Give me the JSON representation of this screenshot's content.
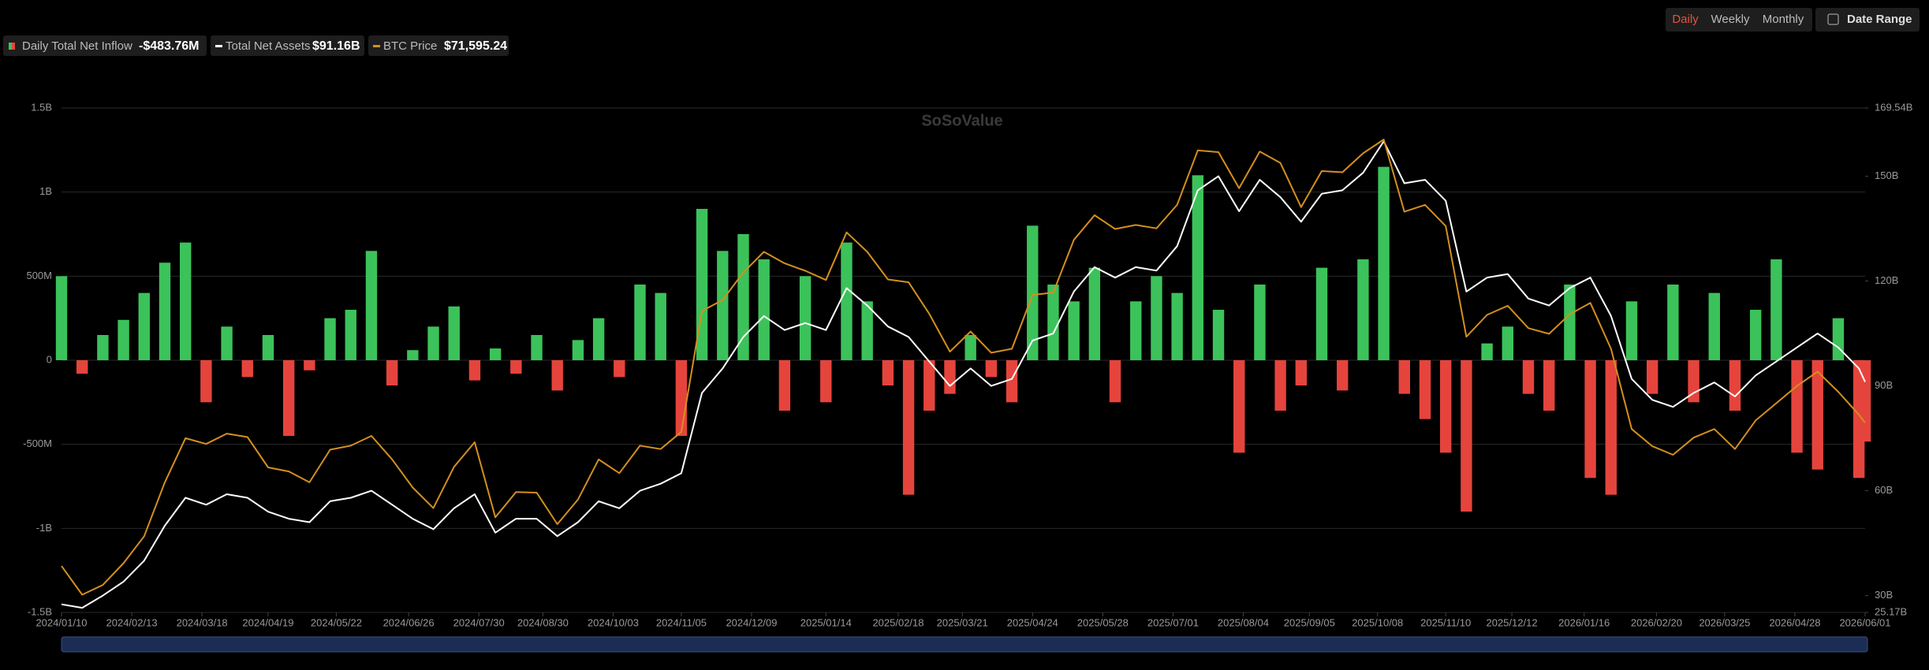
{
  "chart_data": {
    "type": "bar-line",
    "controls": [
      "Daily",
      "Weekly",
      "Monthly"
    ],
    "date_range": "Date Range",
    "watermark": "SoSoValue",
    "x": [
      "2024/01/10",
      "2024/01/20",
      "2024/01/30",
      "2024/02/09",
      "2024/02/19",
      "2024/02/29",
      "2024/03/10",
      "2024/03/20",
      "2024/03/30",
      "2024/04/09",
      "2024/04/19",
      "2024/04/29",
      "2024/05/09",
      "2024/05/19",
      "2024/05/29",
      "2024/06/08",
      "2024/06/18",
      "2024/06/28",
      "2024/07/08",
      "2024/07/18",
      "2024/07/28",
      "2024/08/07",
      "2024/08/17",
      "2024/08/27",
      "2024/09/06",
      "2024/09/16",
      "2024/09/26",
      "2024/10/06",
      "2024/10/16",
      "2024/10/26",
      "2024/11/05",
      "2024/11/15",
      "2024/11/25",
      "2024/12/05",
      "2024/12/15",
      "2024/12/25",
      "2025/01/04",
      "2025/01/14",
      "2025/01/24",
      "2025/02/03",
      "2025/02/13",
      "2025/02/23",
      "2025/03/05",
      "2025/03/15",
      "2025/03/25",
      "2025/04/04",
      "2025/04/14",
      "2025/04/24",
      "2025/05/04",
      "2025/05/14",
      "2025/05/24",
      "2025/06/03",
      "2025/06/13",
      "2025/06/23",
      "2025/07/03",
      "2025/07/13",
      "2025/07/23",
      "2025/08/02",
      "2025/08/12",
      "2025/08/22",
      "2025/09/01",
      "2025/09/11",
      "2025/09/21",
      "2025/10/01",
      "2025/10/11",
      "2025/10/21",
      "2025/10/31",
      "2025/11/10",
      "2025/11/20",
      "2025/11/30",
      "2025/12/10",
      "2025/12/20",
      "2025/12/30",
      "2026/01/09",
      "2026/01/19",
      "2026/01/29",
      "2026/02/08",
      "2026/02/18",
      "2026/02/28",
      "2026/03/10",
      "2026/03/20",
      "2026/03/30",
      "2026/04/09",
      "2026/04/19",
      "2026/04/29",
      "2026/05/09",
      "2026/05/19",
      "2026/05/29",
      "2026/06/01"
    ],
    "xlim": [
      "2024/01/10",
      "2026/06/01"
    ],
    "xticks": [
      "2024/01/10",
      "2024/02/13",
      "2024/03/18",
      "2024/04/19",
      "2024/05/22",
      "2024/06/26",
      "2024/07/30",
      "2024/08/30",
      "2024/10/03",
      "2024/11/05",
      "2024/12/09",
      "2025/01/14",
      "2025/02/18",
      "2025/03/21",
      "2025/04/24",
      "2025/05/28",
      "2025/07/01",
      "2025/08/04",
      "2025/09/05",
      "2025/10/08",
      "2025/11/10",
      "2025/12/12",
      "2026/01/16",
      "2026/02/20",
      "2026/03/25",
      "2026/04/28",
      "2026/06/01"
    ],
    "ylim": [
      -1500,
      1500
    ],
    "yticks": [
      {
        "value": 1500,
        "label": "1.5B"
      },
      {
        "value": 1000,
        "label": "1B"
      },
      {
        "value": 500,
        "label": "500M"
      },
      0,
      {
        "value": -500,
        "label": "-500M"
      },
      {
        "value": -1000,
        "label": "-1B"
      },
      {
        "value": -1500,
        "label": "-1.5B"
      }
    ],
    "y2lim": [
      25.17,
      169.54
    ],
    "y2ticks": [
      {
        "value": 169.54,
        "label": "169.54B"
      },
      {
        "value": 150,
        "label": "150B"
      },
      {
        "value": 120,
        "label": "120B"
      },
      {
        "value": 90,
        "label": "90B"
      },
      {
        "value": 60,
        "label": "60B"
      },
      {
        "value": 30,
        "label": "30B"
      },
      {
        "value": 25.17,
        "label": "25.17B"
      }
    ],
    "y3lim": [
      38500,
      126500
    ],
    "grid": true,
    "series": [
      {
        "name": "Daily Total Net Inflow",
        "latest": "-$483.76M",
        "type": "bar",
        "axis": "y",
        "color": "#3cc25a",
        "negative_color": "#e5443c",
        "values": [
          500,
          -80,
          150,
          240,
          400,
          580,
          700,
          -250,
          200,
          -100,
          150,
          -450,
          -60,
          250,
          300,
          650,
          -150,
          60,
          200,
          320,
          -120,
          70,
          -80,
          150,
          -180,
          120,
          250,
          -100,
          450,
          400,
          -450,
          900,
          650,
          750,
          600,
          -300,
          500,
          -250,
          700,
          350,
          -150,
          -800,
          -300,
          -200,
          150,
          -100,
          -250,
          800,
          450,
          350,
          550,
          -250,
          350,
          500,
          400,
          1100,
          300,
          -550,
          450,
          -300,
          -150,
          550,
          -180,
          600,
          1150,
          -200,
          -350,
          -550,
          -900,
          100,
          200,
          -200,
          -300,
          450,
          -700,
          -800,
          350,
          -200,
          450,
          -250,
          400,
          -300,
          300,
          600,
          -550,
          -650,
          250,
          -700,
          -483.76
        ]
      },
      {
        "name": "Total Net Assets",
        "latest": "$91.16B",
        "type": "line",
        "axis": "y2",
        "color": "#ffffff",
        "values": [
          27.5,
          26.5,
          30,
          34,
          40,
          50,
          58,
          56,
          59,
          58,
          54,
          52,
          51,
          57,
          58,
          60,
          56,
          52,
          49,
          55,
          59,
          48,
          52,
          52,
          47,
          51,
          57,
          55,
          60,
          62,
          65,
          88,
          95,
          104,
          110,
          106,
          108,
          106,
          118,
          113,
          107,
          104,
          97,
          90,
          95,
          90,
          92,
          103,
          105,
          117,
          124,
          121,
          124,
          123,
          130,
          146,
          150,
          140,
          149,
          144,
          137,
          145,
          146,
          151,
          160,
          148,
          149,
          143,
          117,
          121,
          122,
          115,
          113,
          118,
          121,
          110,
          92,
          86,
          84,
          88,
          91,
          87,
          93,
          97,
          101,
          105,
          101,
          95,
          91.16
        ]
      },
      {
        "name": "BTC Price",
        "latest": "$71,595.24",
        "type": "line",
        "axis": "y3",
        "color": "#d48f1f",
        "values": [
          46600,
          41600,
          43300,
          47100,
          51800,
          61200,
          68900,
          67900,
          69700,
          69100,
          63800,
          63100,
          61200,
          66900,
          67600,
          69300,
          65200,
          60300,
          56700,
          63900,
          68200,
          55100,
          59500,
          59400,
          53900,
          58200,
          65200,
          62800,
          67600,
          67000,
          70000,
          91100,
          93000,
          97800,
          101400,
          99400,
          98100,
          96500,
          104800,
          101400,
          96600,
          96100,
          90600,
          84000,
          87500,
          83800,
          84500,
          93900,
          94300,
          103500,
          107800,
          105400,
          106100,
          105500,
          109600,
          119100,
          118800,
          112500,
          118900,
          116900,
          109200,
          115500,
          115300,
          118600,
          121000,
          108400,
          109600,
          105900,
          86600,
          90400,
          92000,
          88100,
          87100,
          90500,
          92500,
          84500,
          70500,
          67500,
          66000,
          69000,
          70500,
          67000,
          72000,
          75000,
          78000,
          80500,
          77000,
          73000,
          71595.24
        ]
      }
    ]
  }
}
